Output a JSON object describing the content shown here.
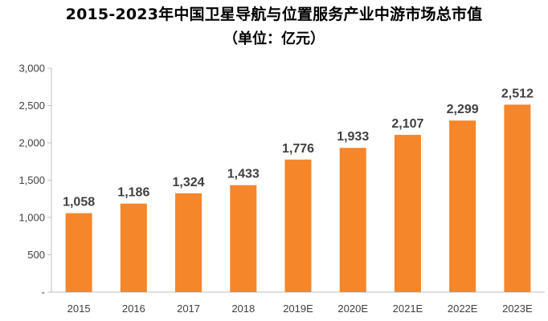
{
  "chart_data": {
    "type": "bar",
    "title": "2015-2023年中国卫星导航与位置服务产业中游市场总市值",
    "subtitle": "（单位：亿元）",
    "categories": [
      "2015",
      "2016",
      "2017",
      "2018",
      "2019E",
      "2020E",
      "2021E",
      "2022E",
      "2023E"
    ],
    "values": [
      1058,
      1186,
      1324,
      1433,
      1776,
      1933,
      2107,
      2299,
      2512
    ],
    "data_labels": [
      "1,058",
      "1,186",
      "1,324",
      "1,433",
      "1,776",
      "1,933",
      "2,107",
      "2,299",
      "2,512"
    ],
    "ylim": [
      0,
      3000
    ],
    "yticks": [
      0,
      500,
      1000,
      1500,
      2000,
      2500,
      3000
    ],
    "ytick_labels": [
      "-",
      "500",
      "1,000",
      "1,500",
      "2,000",
      "2,500",
      "3,000"
    ],
    "xlabel": "",
    "ylabel": "",
    "grid": false,
    "bar_color": "#F5862A",
    "axis_color": "#BFBFBF",
    "text_color": "#404040"
  }
}
